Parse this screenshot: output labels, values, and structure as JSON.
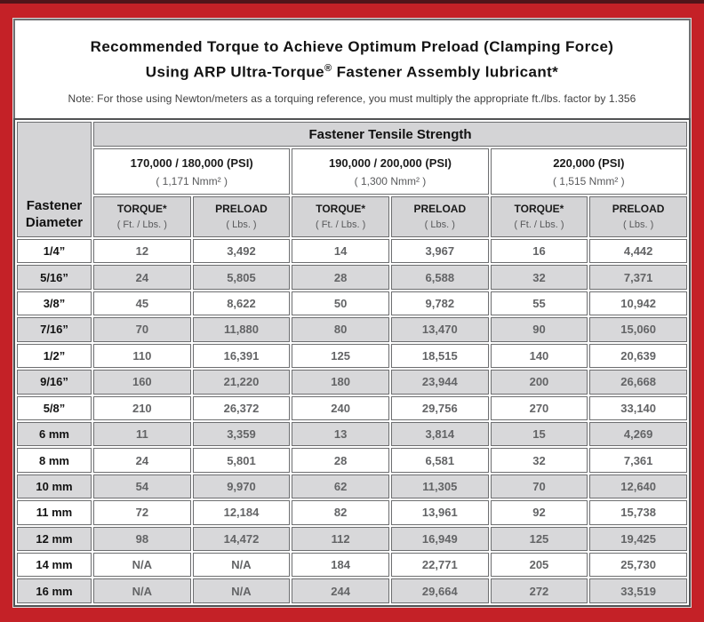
{
  "frame": {
    "border_color": "#c42127",
    "top_strip_color": "#51151a"
  },
  "header": {
    "title_line1": "Recommended Torque to Achieve Optimum Preload (Clamping Force)",
    "title_line2_prefix": "Using ARP Ultra-Torque",
    "title_line2_sup": "®",
    "title_line2_suffix": " Fastener Assembly lubricant*",
    "note": "Note: For those using Newton/meters as a torquing reference, you must multiply the appropriate ft./lbs. factor by 1.356"
  },
  "table": {
    "corner_header": "Fastener Diameter",
    "tensile_header": "Fastener Tensile Strength",
    "strength_groups": [
      {
        "psi": "170,000 / 180,000 (PSI)",
        "nmm": "( 1,171 Nmm² )"
      },
      {
        "psi": "190,000 / 200,000 (PSI)",
        "nmm": "( 1,300 Nmm² )"
      },
      {
        "psi": "220,000 (PSI)",
        "nmm": "( 1,515 Nmm² )"
      }
    ],
    "sub_headers": {
      "torque_label": "TORQUE*",
      "torque_unit": "( Ft. / Lbs. )",
      "preload_label": "PRELOAD",
      "preload_unit": "( Lbs. )"
    },
    "rows": [
      {
        "diameter": "1/4”",
        "values": [
          "12",
          "3,492",
          "14",
          "3,967",
          "16",
          "4,442"
        ]
      },
      {
        "diameter": "5/16”",
        "values": [
          "24",
          "5,805",
          "28",
          "6,588",
          "32",
          "7,371"
        ]
      },
      {
        "diameter": "3/8”",
        "values": [
          "45",
          "8,622",
          "50",
          "9,782",
          "55",
          "10,942"
        ]
      },
      {
        "diameter": "7/16”",
        "values": [
          "70",
          "11,880",
          "80",
          "13,470",
          "90",
          "15,060"
        ]
      },
      {
        "diameter": "1/2”",
        "values": [
          "110",
          "16,391",
          "125",
          "18,515",
          "140",
          "20,639"
        ]
      },
      {
        "diameter": "9/16”",
        "values": [
          "160",
          "21,220",
          "180",
          "23,944",
          "200",
          "26,668"
        ]
      },
      {
        "diameter": "5/8”",
        "values": [
          "210",
          "26,372",
          "240",
          "29,756",
          "270",
          "33,140"
        ]
      },
      {
        "diameter": "6 mm",
        "values": [
          "11",
          "3,359",
          "13",
          "3,814",
          "15",
          "4,269"
        ]
      },
      {
        "diameter": "8 mm",
        "values": [
          "24",
          "5,801",
          "28",
          "6,581",
          "32",
          "7,361"
        ]
      },
      {
        "diameter": "10 mm",
        "values": [
          "54",
          "9,970",
          "62",
          "11,305",
          "70",
          "12,640"
        ]
      },
      {
        "diameter": "11 mm",
        "values": [
          "72",
          "12,184",
          "82",
          "13,961",
          "92",
          "15,738"
        ]
      },
      {
        "diameter": "12 mm",
        "values": [
          "98",
          "14,472",
          "112",
          "16,949",
          "125",
          "19,425"
        ]
      },
      {
        "diameter": "14 mm",
        "values": [
          "N/A",
          "N/A",
          "184",
          "22,771",
          "205",
          "25,730"
        ]
      },
      {
        "diameter": "16 mm",
        "values": [
          "N/A",
          "N/A",
          "244",
          "29,664",
          "272",
          "33,519"
        ]
      }
    ]
  }
}
